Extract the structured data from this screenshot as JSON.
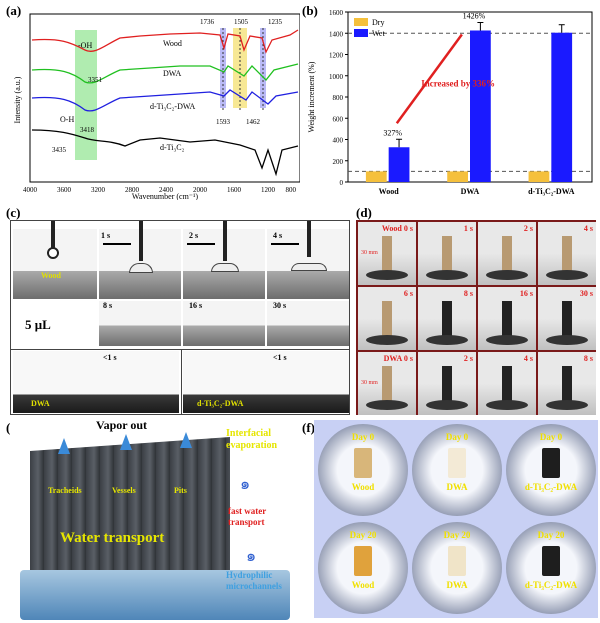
{
  "panels": {
    "a": {
      "label": "(a)",
      "xlabel": "Wavenumber (cm⁻¹)",
      "ylabel": "Intensity (a.u.)",
      "xticks": [
        "4000",
        "3600",
        "3200",
        "2800",
        "2400",
        "2000",
        "1600",
        "1200",
        "800"
      ],
      "series": [
        "Wood",
        "DWA",
        "d-Ti₃C₂-DWA",
        "d-Ti₃C₂"
      ],
      "annotations": [
        "-OH",
        "3351",
        "O-H",
        "3418",
        "3435",
        "1736",
        "1505",
        "1235",
        "1593",
        "1462"
      ]
    },
    "b": {
      "label": "(b)",
      "ylabel": "Weight increment (%)",
      "annotation": "Increased by 336%",
      "value_labels": [
        "327%",
        "1426%"
      ]
    },
    "c": {
      "label": "(c)",
      "volume": "5 μL",
      "times_row1": [
        "1 s",
        "2 s",
        "4 s"
      ],
      "times_row2": [
        "8 s",
        "16 s",
        "30 s"
      ],
      "time_lt": "<1 s",
      "tag_wood": "Wood",
      "tag_dwa": "DWA",
      "tag_ti": "d-Ti₃C₂-DWA"
    },
    "d": {
      "label": "(d)",
      "rows": [
        [
          "Wood 0 s",
          "1 s",
          "2 s",
          "4 s"
        ],
        [
          "6 s",
          "8 s",
          "16 s",
          "30 s"
        ],
        [
          "DWA 0 s",
          "2 s",
          "4 s",
          "8 s"
        ]
      ],
      "scale": "30 mm"
    },
    "e": {
      "label": "(e)",
      "vapor": "Vapor out",
      "interfacial": "Interfacial evaporation",
      "fast": "fast water transport",
      "hydrophilic": "Hydrophilic microchannels",
      "tracheids": "Tracheids",
      "vessels": "Vessels",
      "pits": "Pits",
      "water_transport": "Water transport"
    },
    "f": {
      "label": "(f)",
      "top": [
        {
          "day": "Day 0",
          "name": "Wood"
        },
        {
          "day": "Day 0",
          "name": "DWA"
        },
        {
          "day": "Day 0",
          "name": "d-Ti₃C₂-DWA"
        }
      ],
      "bottom": [
        {
          "day": "Day 20",
          "name": "Wood"
        },
        {
          "day": "Day 20",
          "name": "DWA"
        },
        {
          "day": "Day 20",
          "name": "d-Ti₃C₂-DWA"
        }
      ]
    }
  },
  "chart_data": {
    "type": "bar",
    "categories": [
      "Wood",
      "DWA",
      "d-Ti₃C₂-DWA"
    ],
    "series": [
      {
        "name": "Dry",
        "values": [
          100,
          100,
          100
        ],
        "color": "#f5c03c"
      },
      {
        "name": "Wet",
        "values": [
          327,
          1426,
          1405
        ],
        "color": "#1a1aff"
      }
    ],
    "ylim": [
      0,
      1600
    ],
    "yticks": [
      0,
      200,
      400,
      600,
      800,
      1000,
      1200,
      1400,
      1600
    ],
    "ylabel": "Weight increment (%)",
    "legend": "top-left",
    "reference_lines": [
      100,
      1400
    ]
  }
}
